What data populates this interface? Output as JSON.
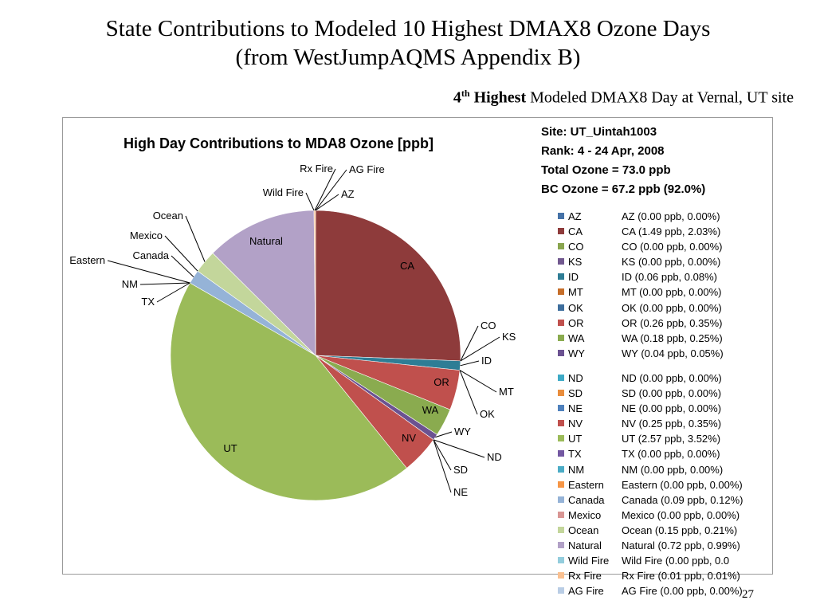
{
  "slide": {
    "title_line1": "State Contributions to Modeled 10 Highest DMAX8 Ozone Days",
    "title_line2": "(from WestJumpAQMS Appendix B)",
    "subtitle_rank": "4",
    "subtitle_sup": "th",
    "subtitle_bold": "Highest",
    "subtitle_rest": "Modeled DMAX8 Day at Vernal, UT site",
    "page_number": "27"
  },
  "info": {
    "site": "Site: UT_Uintah1003",
    "rank": "Rank: 4 - 24 Apr, 2008",
    "total": "Total Ozone = 73.0 ppb",
    "bc": "BC Ozone = 67.2 ppb (92.0%)"
  },
  "chart_data": {
    "type": "pie",
    "title": "High Day Contributions to MDA8 Ozone [ppb]",
    "slices": [
      {
        "name": "AZ",
        "value": 0.0,
        "color": "#4572a7",
        "legend": "AZ (0.00 ppb, 0.00%)"
      },
      {
        "name": "CA",
        "value": 1.49,
        "color": "#8e3b3b",
        "legend": "CA (1.49 ppb, 2.03%)"
      },
      {
        "name": "CO",
        "value": 0.0,
        "color": "#89a54e",
        "legend": "CO (0.00 ppb, 0.00%)"
      },
      {
        "name": "KS",
        "value": 0.0,
        "color": "#71588f",
        "legend": "KS (0.00 ppb, 0.00%)"
      },
      {
        "name": "ID",
        "value": 0.06,
        "color": "#2e7d95",
        "legend": "ID (0.06 ppb, 0.08%)"
      },
      {
        "name": "MT",
        "value": 0.0,
        "color": "#c66e2a",
        "legend": "MT (0.00 ppb, 0.00%)"
      },
      {
        "name": "OK",
        "value": 0.0,
        "color": "#3e6e9d",
        "legend": "OK (0.00 ppb, 0.00%)"
      },
      {
        "name": "OR",
        "value": 0.26,
        "color": "#c0504d",
        "legend": "OR (0.26 ppb, 0.35%)"
      },
      {
        "name": "WA",
        "value": 0.18,
        "color": "#8aab4f",
        "legend": "WA (0.18 ppb, 0.25%)"
      },
      {
        "name": "WY",
        "value": 0.04,
        "color": "#6b5291",
        "legend": "WY (0.04 ppb, 0.05%)"
      },
      {
        "name": "ND",
        "value": 0.0,
        "color": "#3eaac6",
        "legend": "ND (0.00 ppb, 0.00%)"
      },
      {
        "name": "SD",
        "value": 0.0,
        "color": "#e98d3c",
        "legend": "SD (0.00 ppb, 0.00%)"
      },
      {
        "name": "NE",
        "value": 0.0,
        "color": "#4f81bd",
        "legend": "NE (0.00 ppb, 0.00%)"
      },
      {
        "name": "NV",
        "value": 0.25,
        "color": "#c0504d",
        "legend": "NV (0.25 ppb, 0.35%)"
      },
      {
        "name": "UT",
        "value": 2.57,
        "color": "#9bbb59",
        "legend": "UT (2.57 ppb, 3.52%)"
      },
      {
        "name": "TX",
        "value": 0.0,
        "color": "#7358a2",
        "legend": "TX (0.00 ppb, 0.00%)"
      },
      {
        "name": "NM",
        "value": 0.0,
        "color": "#4bacc6",
        "legend": "NM (0.00 ppb, 0.00%)"
      },
      {
        "name": "Eastern",
        "value": 0.0,
        "color": "#f79646",
        "legend": "Eastern (0.00 ppb, 0.00%)"
      },
      {
        "name": "Canada",
        "value": 0.09,
        "color": "#95b3d7",
        "legend": "Canada (0.09 ppb, 0.12%)"
      },
      {
        "name": "Mexico",
        "value": 0.0,
        "color": "#d99694",
        "legend": "Mexico (0.00 ppb, 0.00%)"
      },
      {
        "name": "Ocean",
        "value": 0.15,
        "color": "#c3d69b",
        "legend": "Ocean (0.15 ppb, 0.21%)"
      },
      {
        "name": "Natural",
        "value": 0.72,
        "color": "#b2a1c7",
        "legend": "Natural (0.72 ppb, 0.99%)"
      },
      {
        "name": "Wild Fire",
        "value": 0.0,
        "color": "#93cddd",
        "legend": "Wild Fire (0.00 ppb, 0.0"
      },
      {
        "name": "Rx Fire",
        "value": 0.01,
        "color": "#fac090",
        "legend": "Rx Fire (0.01 ppb, 0.01%)"
      },
      {
        "name": "AG Fire",
        "value": 0.0,
        "color": "#b9cde5",
        "legend": "AG Fire (0.00 ppb, 0.00%)"
      }
    ]
  }
}
